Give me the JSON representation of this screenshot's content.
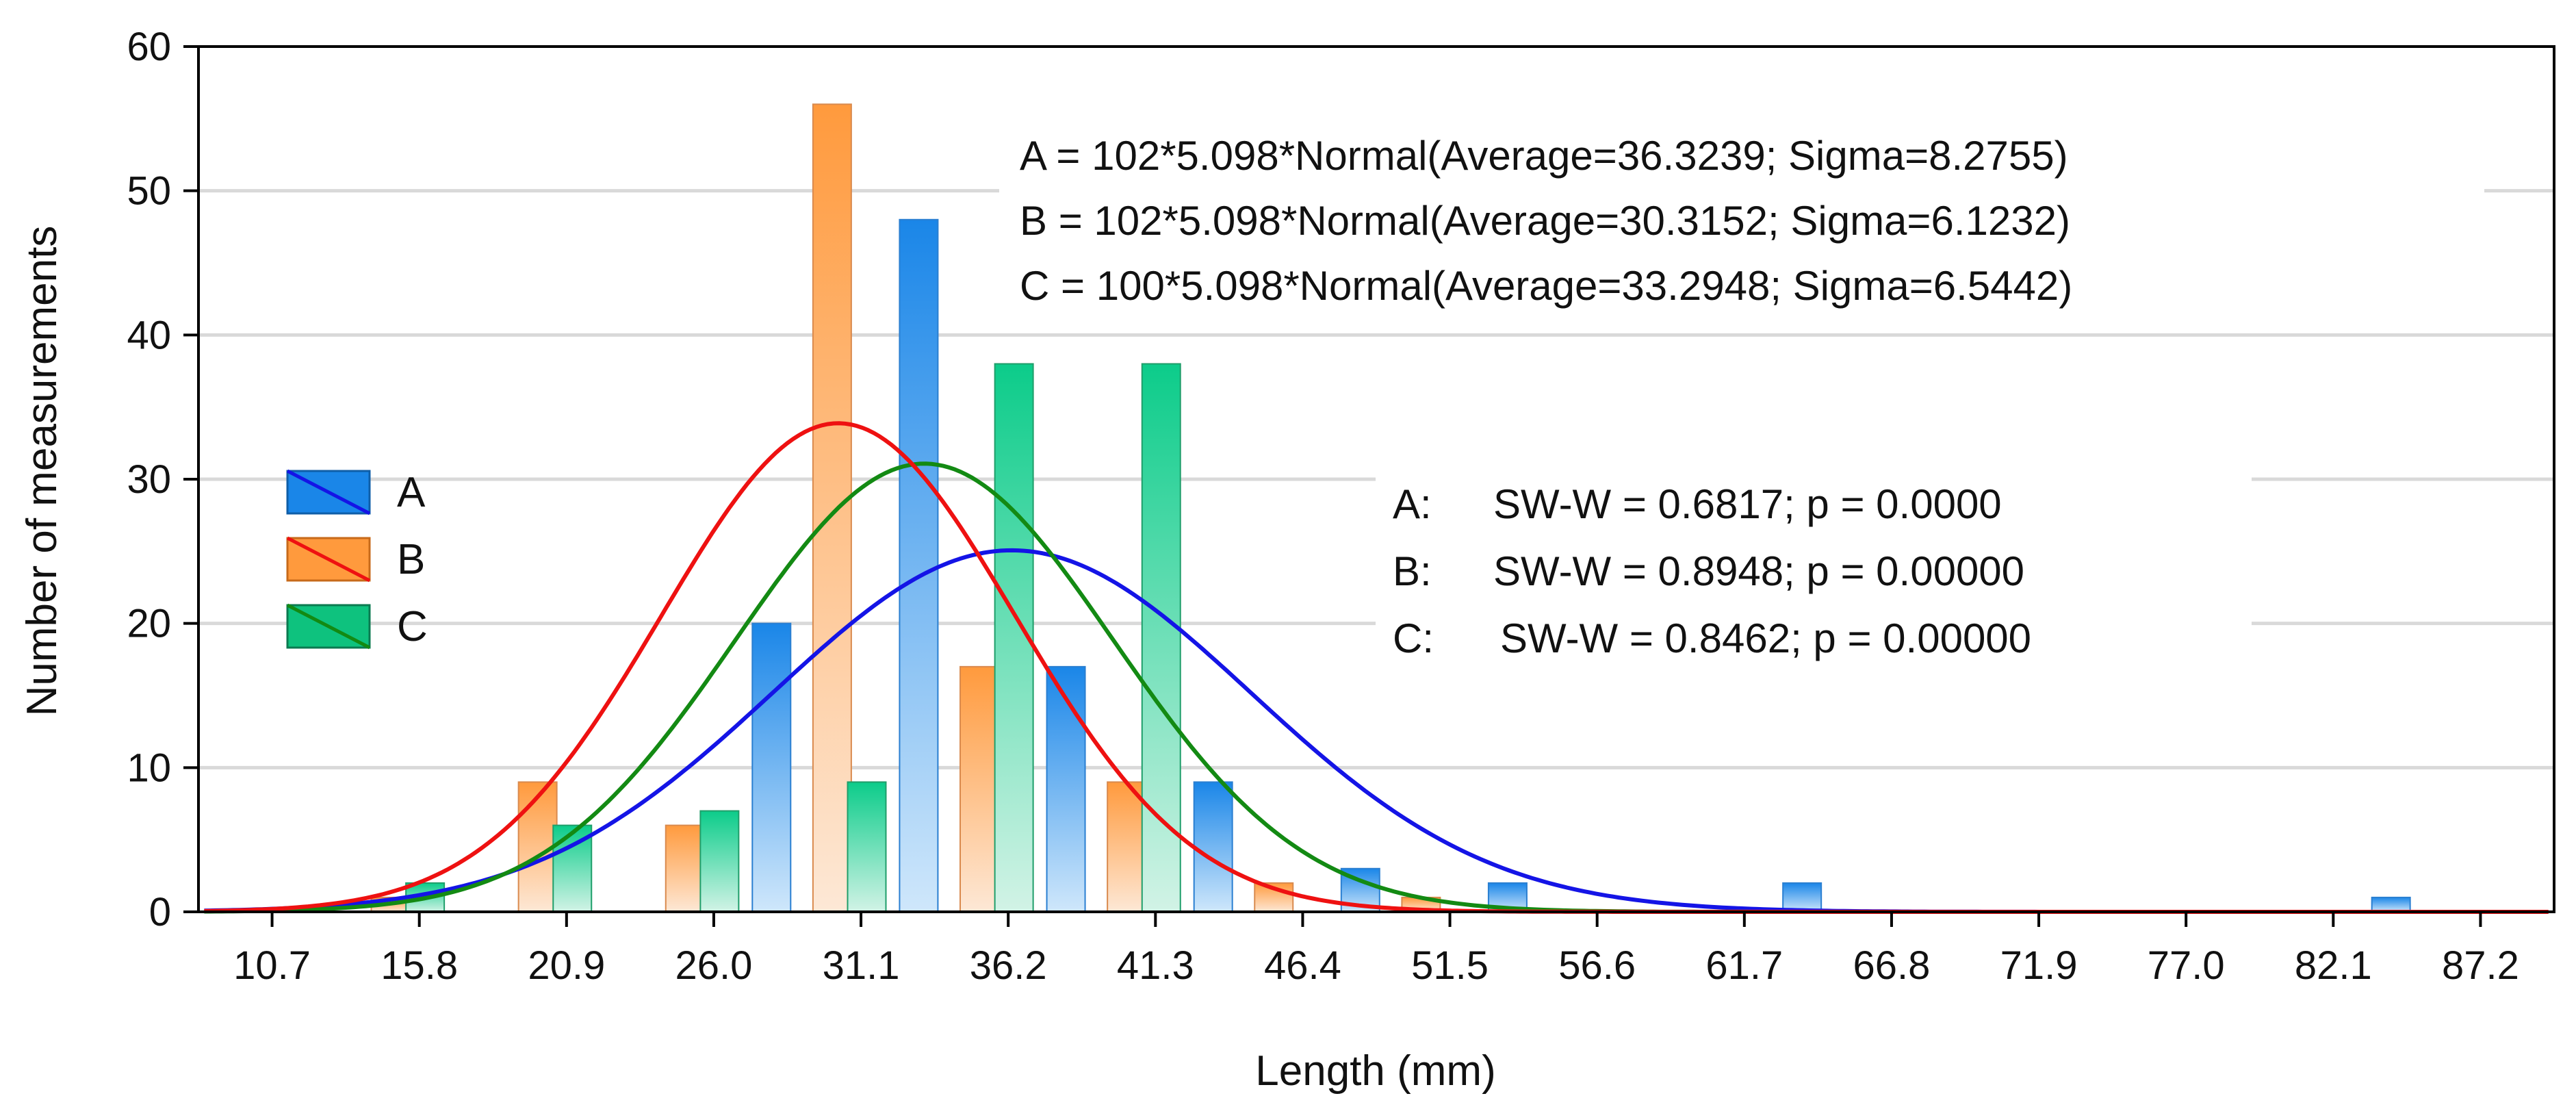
{
  "chart_data": {
    "type": "bar",
    "title": "",
    "xlabel": "Length (mm)",
    "ylabel": "Number of measurements",
    "xlim": [
      8.15,
      89.75
    ],
    "ylim": [
      0,
      60
    ],
    "x_ticks": [
      10.7,
      15.8,
      20.9,
      26.0,
      31.1,
      36.2,
      41.3,
      46.4,
      51.5,
      56.6,
      61.7,
      66.8,
      71.9,
      77.0,
      82.1,
      87.2
    ],
    "x_tick_labels": [
      "10.7",
      "15.8",
      "20.9",
      "26.0",
      "31.1",
      "36.2",
      "41.3",
      "46.4",
      "51.5",
      "56.6",
      "61.7",
      "66.8",
      "71.9",
      "77.0",
      "82.1",
      "87.2"
    ],
    "y_ticks": [
      0,
      10,
      20,
      30,
      40,
      50,
      60
    ],
    "y_tick_labels": [
      "0",
      "10",
      "20",
      "30",
      "40",
      "50",
      "60"
    ],
    "bin_width": 5.098,
    "grid": "horizontal",
    "legend_position": "left",
    "series": [
      {
        "name": "A",
        "bars": [
          {
            "x": 28.0,
            "value": 20
          },
          {
            "x": 33.1,
            "value": 48
          },
          {
            "x": 38.2,
            "value": 17
          },
          {
            "x": 43.3,
            "value": 9
          },
          {
            "x": 48.4,
            "value": 3
          },
          {
            "x": 53.5,
            "value": 2
          },
          {
            "x": 63.7,
            "value": 2
          },
          {
            "x": 84.1,
            "value": 1
          }
        ],
        "curve": {
          "n": 102,
          "bin": 5.098,
          "mean": 36.3239,
          "sigma": 8.2755
        }
      },
      {
        "name": "B",
        "bars": [
          {
            "x": 14.8,
            "value": 1
          },
          {
            "x": 19.9,
            "value": 9
          },
          {
            "x": 25.0,
            "value": 6
          },
          {
            "x": 30.1,
            "value": 56
          },
          {
            "x": 35.2,
            "value": 17
          },
          {
            "x": 40.3,
            "value": 9
          },
          {
            "x": 45.4,
            "value": 2
          },
          {
            "x": 50.5,
            "value": 1
          }
        ],
        "curve": {
          "n": 102,
          "bin": 5.098,
          "mean": 30.3152,
          "sigma": 6.1232
        }
      },
      {
        "name": "C",
        "bars": [
          {
            "x": 16.0,
            "value": 2
          },
          {
            "x": 21.1,
            "value": 6
          },
          {
            "x": 26.2,
            "value": 7
          },
          {
            "x": 31.3,
            "value": 9
          },
          {
            "x": 36.4,
            "value": 38
          },
          {
            "x": 41.5,
            "value": 38
          }
        ],
        "curve": {
          "n": 100,
          "bin": 5.098,
          "mean": 33.2948,
          "sigma": 6.5442
        }
      }
    ],
    "annotations": {
      "equations": [
        "A = 102*5.098*Normal(Average=36.3239; Sigma=8.2755)",
        "B = 102*5.098*Normal(Average=30.3152; Sigma=6.1232)",
        "C = 100*5.098*Normal(Average=33.2948; Sigma=6.5442)"
      ],
      "normality_tests": [
        {
          "series": "A:",
          "text": "SW-W = 0.6817; p = 0.0000"
        },
        {
          "series": "B:",
          "text": "SW-W = 0.8948; p = 0.00000"
        },
        {
          "series": "C:",
          "text": "SW-W = 0.8462; p = 0.00000"
        }
      ]
    }
  },
  "colors": {
    "A": {
      "dark": "#1a86e8",
      "light": "#cfe7fb",
      "line": "#1414e6"
    },
    "B": {
      "dark": "#ff9a3d",
      "light": "#fde8d6",
      "line": "#ee1111"
    },
    "C": {
      "dark": "#0ccc8a",
      "light": "#d2f3e6",
      "line": "#138a13"
    },
    "grid": "#d9d9d9",
    "axis": "#000000"
  }
}
